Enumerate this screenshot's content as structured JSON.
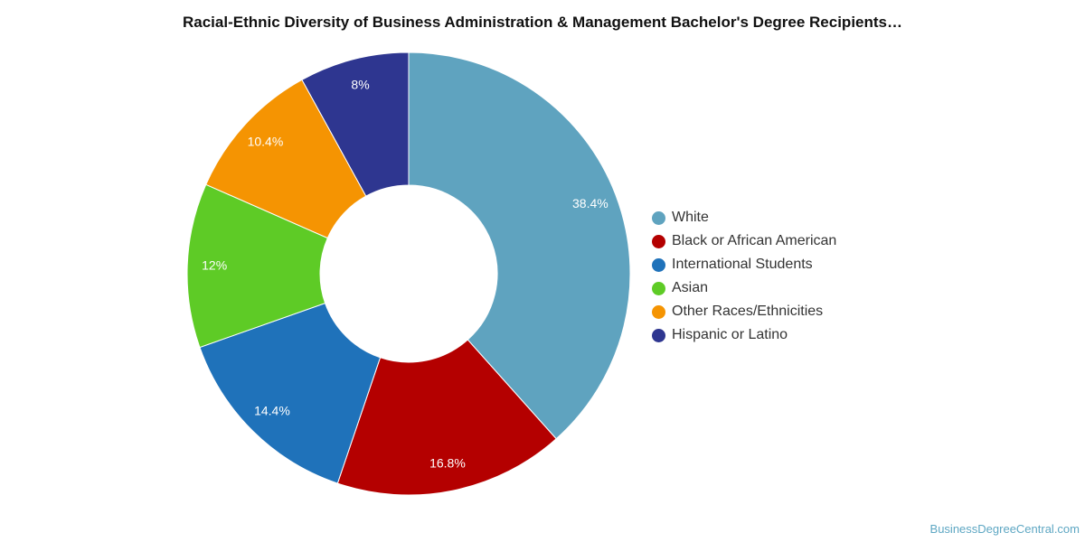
{
  "chart_data": {
    "type": "pie",
    "title": "Racial-Ethnic Diversity of Business Administration & Management Bachelor's Degree Recipients…",
    "donut": true,
    "categories": [
      "White",
      "Black or African American",
      "International Students",
      "Asian",
      "Other Races/Ethnicities",
      "Hispanic or Latino"
    ],
    "values": [
      38.4,
      16.8,
      14.4,
      12,
      10.4,
      8
    ],
    "data_labels": [
      "38.4%",
      "16.8%",
      "14.4%",
      "12%",
      "10.4%",
      "8%"
    ],
    "colors": [
      "#5fa3bf",
      "#b40000",
      "#1f72ba",
      "#5ecb26",
      "#f59402",
      "#2e3690"
    ],
    "legend_position": "right"
  },
  "source_credit": "BusinessDegreeCentral.com"
}
